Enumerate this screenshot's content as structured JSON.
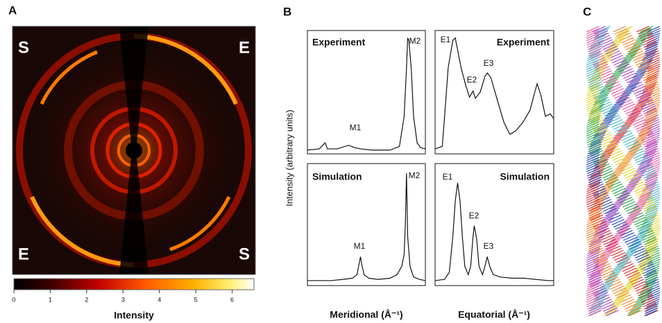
{
  "chart_data": [
    {
      "type": "image",
      "panel_label": "A",
      "annotations": [
        "S",
        "E",
        "E",
        "S"
      ],
      "colorbar": {
        "label": "Intensity",
        "xlim": [
          0,
          6.6
        ],
        "xticks": [
          0,
          1,
          2,
          3,
          4,
          5,
          6
        ]
      }
    },
    {
      "type": "line",
      "panel_label": "B",
      "title": "Experiment",
      "ylabel": "Intensity (arbitrary units)",
      "xlabel": "Meridional (Å⁻¹)",
      "x": [
        0,
        10,
        15,
        17,
        25,
        35,
        40,
        45,
        55,
        70,
        78,
        82,
        84,
        85,
        86,
        88,
        90,
        93,
        96,
        100
      ],
      "values": [
        2,
        3,
        8,
        3,
        3,
        6,
        4,
        3,
        2,
        2,
        5,
        30,
        70,
        95,
        93,
        70,
        30,
        8,
        4,
        3
      ],
      "xlim": [
        0,
        100
      ],
      "ylim": [
        0,
        100
      ],
      "annotations": [
        "M1",
        "M2"
      ]
    },
    {
      "type": "line",
      "title": "Experiment",
      "xlabel": "Equatorial (Å⁻¹)",
      "x": [
        0,
        6,
        8,
        11,
        15,
        17,
        19,
        22,
        26,
        29,
        32,
        34,
        38,
        42,
        44,
        47,
        52,
        58,
        63,
        68,
        74,
        80,
        84,
        86,
        89,
        93,
        97,
        100
      ],
      "values": [
        3,
        5,
        30,
        70,
        93,
        95,
        85,
        70,
        55,
        46,
        51,
        45,
        50,
        63,
        66,
        62,
        45,
        25,
        15,
        18,
        25,
        35,
        50,
        57,
        48,
        30,
        32,
        28
      ],
      "xlim": [
        0,
        100
      ],
      "ylim": [
        0,
        100
      ],
      "annotations": [
        "E1",
        "E2",
        "E3"
      ]
    },
    {
      "type": "line",
      "title": "Simulation",
      "x": [
        0,
        10,
        20,
        30,
        38,
        42,
        44,
        45,
        46,
        48,
        52,
        60,
        70,
        76,
        80,
        82,
        83,
        84,
        85,
        87,
        90,
        95,
        100
      ],
      "values": [
        3,
        3,
        3,
        4,
        5,
        8,
        18,
        23,
        17,
        8,
        5,
        4,
        5,
        8,
        15,
        25,
        50,
        93,
        40,
        15,
        6,
        4,
        3
      ],
      "xlim": [
        0,
        100
      ],
      "ylim": [
        0,
        100
      ],
      "annotations": [
        "M1",
        "M2"
      ]
    },
    {
      "type": "line",
      "title": "Simulation",
      "x": [
        0,
        8,
        12,
        15,
        17,
        19,
        21,
        23,
        25,
        28,
        30,
        32,
        33,
        35,
        37,
        40,
        42,
        44,
        46,
        49,
        55,
        65,
        75,
        85,
        95,
        100
      ],
      "values": [
        3,
        4,
        10,
        40,
        70,
        85,
        70,
        40,
        15,
        8,
        15,
        40,
        49,
        38,
        15,
        8,
        15,
        23,
        15,
        8,
        6,
        5,
        5,
        4,
        3,
        3
      ],
      "xlim": [
        0,
        100
      ],
      "ylim": [
        0,
        100
      ],
      "annotations": [
        "E1",
        "E2",
        "E3"
      ]
    },
    {
      "type": "image",
      "panel_label": "C"
    }
  ]
}
